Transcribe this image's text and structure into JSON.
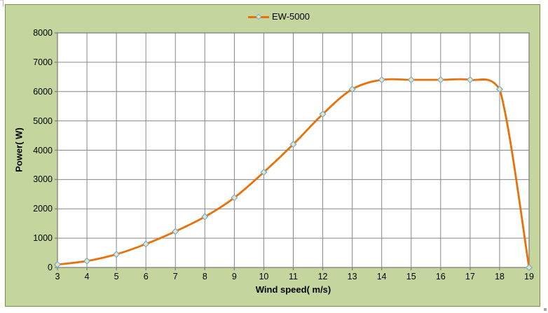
{
  "legend": {
    "label": "EW-5000"
  },
  "chart_data": {
    "type": "line",
    "smooth": true,
    "title": "",
    "xlabel": "Wind speed( m/s)",
    "ylabel": "Power( W)",
    "x": [
      3,
      4,
      5,
      6,
      7,
      8,
      9,
      10,
      11,
      12,
      13,
      14,
      15,
      16,
      17,
      18,
      19
    ],
    "series": [
      {
        "name": "EW-5000",
        "values": [
          100,
          220,
          450,
          800,
          1230,
          1730,
          2380,
          3250,
          4200,
          5230,
          6080,
          6400,
          6400,
          6400,
          6400,
          6080,
          0
        ],
        "marker": "diamond"
      }
    ],
    "x_ticks": [
      3,
      4,
      5,
      6,
      7,
      8,
      9,
      10,
      11,
      12,
      13,
      14,
      15,
      16,
      17,
      18,
      19
    ],
    "y_ticks": [
      0,
      1000,
      2000,
      3000,
      4000,
      5000,
      6000,
      7000,
      8000
    ],
    "xlim": [
      3,
      19
    ],
    "ylim": [
      0,
      8000
    ],
    "grid": true,
    "legend_position": "top-center"
  },
  "colors": {
    "chart_background": "#c4d69d",
    "chart_border": "#77933c",
    "plot_background": "#ffffff",
    "gridline": "#878787",
    "plot_border": "#808080",
    "series_line": "#e8710a",
    "marker_fill": "#dde8ca",
    "marker_stroke": "#7da7c4",
    "text": "#000000"
  }
}
